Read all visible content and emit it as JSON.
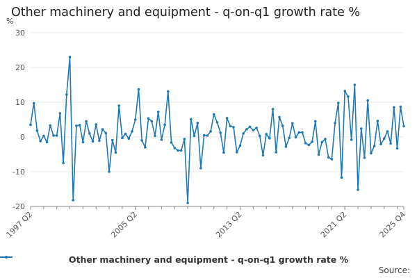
{
  "title": "Other machinery and equipment - q-on-q1 growth rate %",
  "y_unit": "%",
  "source_label": "Source:",
  "colors": {
    "series": "#1f78b4",
    "grid": "#e6e6e6",
    "axis": "#888888"
  },
  "chart_data": {
    "type": "line",
    "title": "Other machinery and equipment - q-on-q1 growth rate %",
    "ylabel": "%",
    "xlabel": "",
    "ylim": [
      -20,
      30
    ],
    "yticks": [
      -20,
      -10,
      0,
      10,
      20,
      30
    ],
    "x_tick_labels": [
      "1997 Q2",
      "2005 Q2",
      "2013 Q2",
      "2021 Q2",
      "2025 Q4"
    ],
    "x_tick_quarter_index": [
      0,
      32,
      64,
      96,
      114
    ],
    "grid": true,
    "legend_position": "bottom",
    "series": [
      {
        "name": "Other machinery and equipment - q-on-q1 growth rate %",
        "start": "1997 Q2",
        "end": "2025 Q4",
        "values": [
          3.5,
          9.7,
          1.8,
          -1.2,
          0.3,
          -1.5,
          3.3,
          0.4,
          0.4,
          6.8,
          -7.5,
          12.2,
          23.0,
          -18.2,
          3.2,
          3.4,
          -1.5,
          4.5,
          1.0,
          -1.3,
          3.6,
          -1.1,
          2.2,
          1.1,
          -10.0,
          -0.9,
          -4.5,
          9.0,
          -0.3,
          0.9,
          -0.5,
          1.6,
          5.0,
          13.7,
          -1.0,
          -3.0,
          5.3,
          4.5,
          0.3,
          7.2,
          -0.8,
          3.5,
          13.1,
          -1.6,
          -3.2,
          -3.9,
          -3.9,
          -0.6,
          -19.0,
          5.1,
          0.3,
          4.0,
          -9.0,
          0.5,
          0.4,
          1.6,
          6.5,
          4.2,
          1.2,
          -4.5,
          5.4,
          3.1,
          2.8,
          -4.4,
          -2.5,
          1.0,
          2.2,
          2.9,
          1.9,
          2.6,
          0.3,
          -5.3,
          0.8,
          -0.4,
          8.0,
          -4.4,
          5.7,
          3.2,
          -2.8,
          -0.3,
          3.9,
          -0.1,
          1.3,
          1.3,
          -1.8,
          -2.3,
          -1.4,
          4.5,
          -5.1,
          -1.5,
          -0.6,
          -5.9,
          -6.4,
          4.0,
          9.8,
          -11.7,
          13.2,
          11.6,
          -0.8,
          15.0,
          -15.2,
          2.4,
          -6.0,
          10.5,
          -4.7,
          -2.6,
          4.6,
          -2.1,
          -0.5,
          1.6,
          -1.9,
          8.5,
          -3.3,
          8.7,
          3.1
        ]
      }
    ]
  }
}
